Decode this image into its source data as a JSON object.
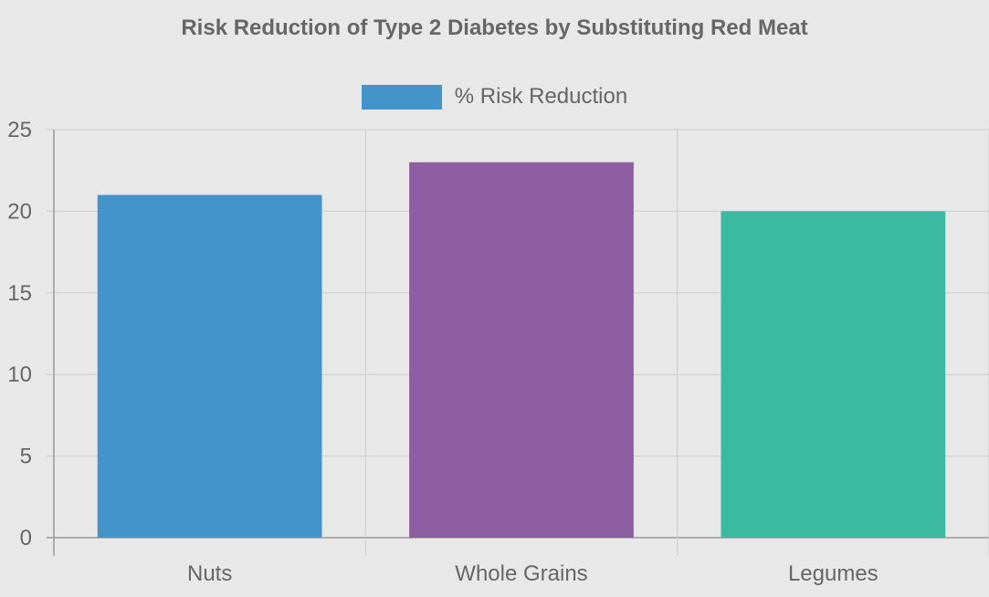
{
  "chart_data": {
    "type": "bar",
    "title": "Risk Reduction of Type 2 Diabetes by Substituting Red Meat",
    "categories": [
      "Nuts",
      "Whole Grains",
      "Legumes"
    ],
    "series": [
      {
        "name": "% Risk Reduction",
        "values": [
          21,
          23,
          20
        ],
        "colors": [
          "#4394ca",
          "#8e5ea2",
          "#3cb9a1"
        ]
      }
    ],
    "xlabel": "",
    "ylabel": "",
    "ylim": [
      0,
      25
    ],
    "yticks": [
      0,
      5,
      10,
      15,
      20,
      25
    ],
    "legend_position": "top-center",
    "grid": true,
    "legend_color": "#4394ca"
  }
}
